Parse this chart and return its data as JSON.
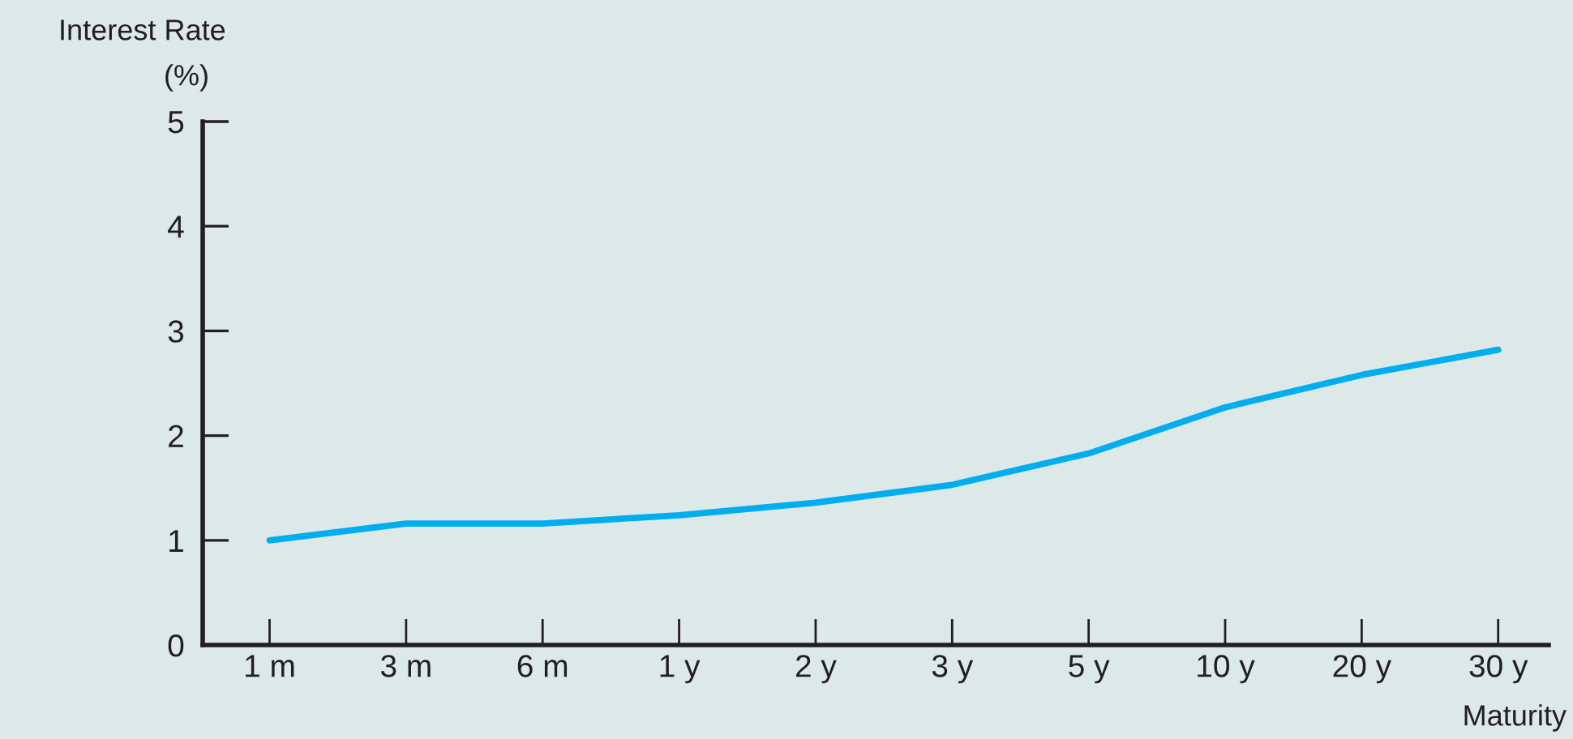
{
  "chart_data": {
    "type": "line",
    "ylabel": "Interest Rate\n(%)",
    "xlabel": "Maturity",
    "categories": [
      "1 m",
      "3 m",
      "6 m",
      "1 y",
      "2 y",
      "3 y",
      "5 y",
      "10 y",
      "20 y",
      "30 y"
    ],
    "series": [
      {
        "color": "#00aeef",
        "values": [
          1.0,
          1.16,
          1.16,
          1.24,
          1.36,
          1.53,
          1.83,
          2.27,
          2.58,
          2.82
        ]
      }
    ],
    "ylim": [
      0,
      5
    ],
    "yticks": [
      0,
      1,
      2,
      3,
      4,
      5
    ],
    "grid": false,
    "legend": false,
    "marker": "none",
    "line_style": "solid"
  }
}
